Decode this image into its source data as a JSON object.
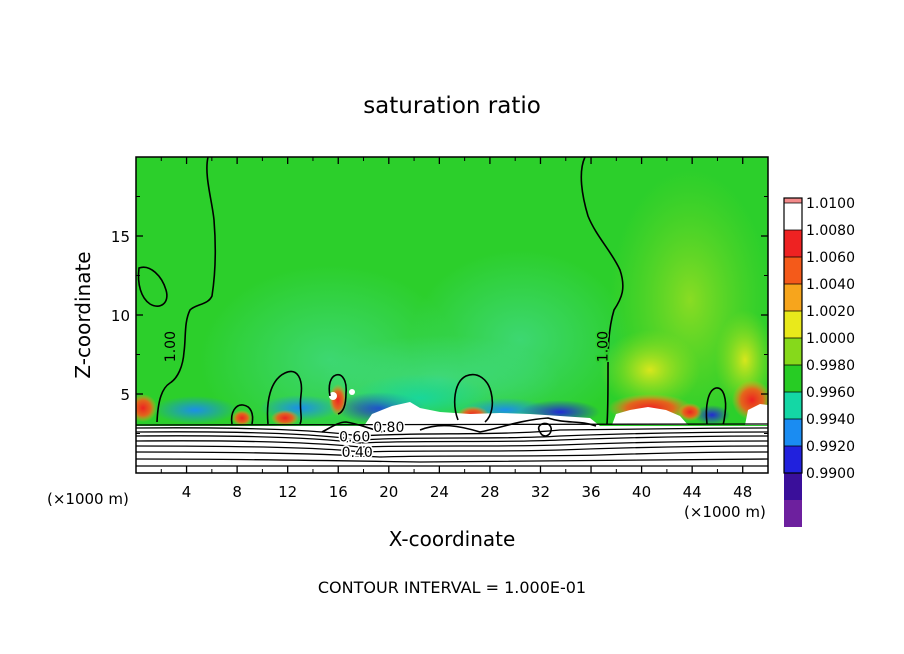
{
  "chart_data": {
    "type": "heatmap",
    "title": "saturation ratio",
    "xlabel": "X-coordinate",
    "ylabel": "Z-coordinate",
    "x_unit_left": "(×1000 m)",
    "x_unit_right": "(×1000 m)",
    "footer": "CONTOUR INTERVAL = 1.000E-01",
    "xlim": [
      0,
      50
    ],
    "ylim": [
      0,
      20
    ],
    "x_ticks": [
      4,
      8,
      12,
      16,
      20,
      24,
      28,
      32,
      36,
      40,
      44,
      48
    ],
    "y_ticks": [
      5,
      10,
      15
    ],
    "colorbar": {
      "levels": [
        "1.0100",
        "1.0080",
        "1.0060",
        "1.0040",
        "1.0020",
        "1.0000",
        "0.9980",
        "0.9960",
        "0.9940",
        "0.9920",
        "0.9900"
      ],
      "colors": [
        "#f38a8a",
        "#ee2222",
        "#f45a1a",
        "#f7a51c",
        "#e9e91b",
        "#86d91b",
        "#27cc24",
        "#14d7a5",
        "#1a8cf2",
        "#2121dd",
        "#3a0f9a",
        "#6d209e"
      ]
    },
    "background_color": "#2ccf2b",
    "contour_labels": [
      {
        "text": "1.00",
        "x": 3.1,
        "z": 8.0
      },
      {
        "text": "1.00",
        "x": 37.3,
        "z": 8.0
      },
      {
        "text": "0.80",
        "x": 20.0,
        "z": 2.6
      },
      {
        "text": "0.60",
        "x": 17.3,
        "z": 2.0
      },
      {
        "text": "0.40",
        "x": 17.5,
        "z": 1.0
      }
    ]
  }
}
